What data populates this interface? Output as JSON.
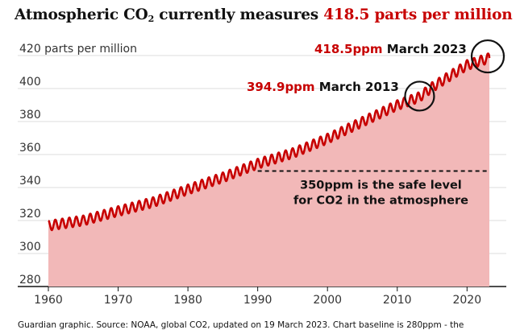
{
  "title": {
    "part1": "Atmospheric CO",
    "sub": "2",
    "part2": " currently measures ",
    "highlight": "418.5 parts per million"
  },
  "source": "Guardian graphic. Source: NOAA, global CO2, updated on 19 March 2023. Chart baseline is 280ppm - the",
  "colors": {
    "accent": "#c70000",
    "area": "#f2b8b8",
    "text": "#121212",
    "grid": "#dcdcdc"
  },
  "chart_data": {
    "type": "area",
    "title": "Atmospheric CO2 currently measures 418.5 parts per million",
    "ylabel": "parts per million",
    "ylim": [
      280,
      420
    ],
    "xlim": [
      1960,
      2023.2
    ],
    "yticks": [
      280,
      300,
      320,
      340,
      360,
      380,
      400,
      420
    ],
    "ytick_labels": [
      "280",
      "300",
      "320",
      "340",
      "360",
      "380",
      "400",
      "420 parts per million"
    ],
    "xticks": [
      1960,
      1970,
      1980,
      1990,
      2000,
      2010,
      2020
    ],
    "xtick_labels": [
      "1960",
      "1970",
      "1980",
      "1990",
      "2000",
      "2010",
      "2020"
    ],
    "grid": true,
    "baseline": 280,
    "seasonal_amplitude_ppm": 3,
    "series": [
      {
        "x": [
          1960,
          1965,
          1970,
          1975,
          1980,
          1985,
          1990,
          1995,
          2000,
          2005,
          2010,
          2013.2,
          2015,
          2020,
          2023.2
        ],
        "values": [
          316.9,
          320.0,
          325.7,
          331.1,
          338.8,
          346.1,
          354.4,
          360.8,
          369.6,
          379.8,
          389.9,
          394.9,
          400.8,
          414.2,
          418.5
        ]
      }
    ],
    "reference_line": {
      "x_start": 1990,
      "x_end": 2023,
      "y": 350,
      "label_line1": "350ppm is the safe level",
      "label_line2": "for CO2 in the atmosphere"
    },
    "annotations": [
      {
        "x": 2013.2,
        "y": 394.9,
        "value_text": "394.9ppm",
        "date_text": "March 2013"
      },
      {
        "x": 2023.2,
        "y": 418.5,
        "value_text": "418.5ppm",
        "date_text": "March 2023"
      }
    ]
  }
}
